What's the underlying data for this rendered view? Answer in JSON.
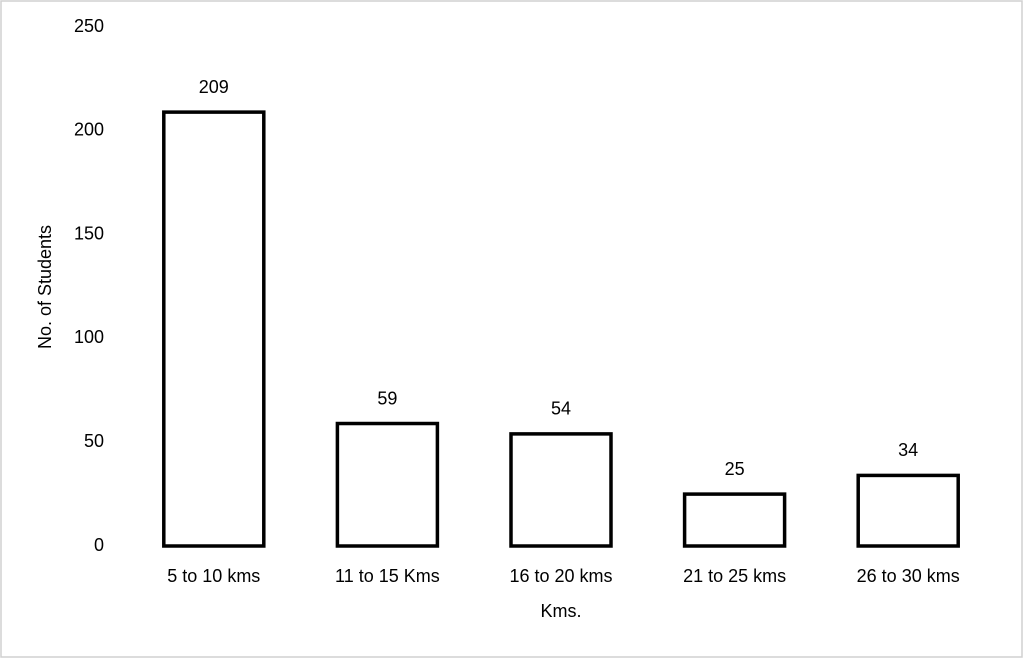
{
  "chart_data": {
    "type": "bar",
    "categories": [
      "5 to 10 kms",
      "11 to 15 Kms",
      "16 to 20 kms",
      "21 to 25 kms",
      "26 to 30 kms"
    ],
    "values": [
      209,
      59,
      54,
      25,
      34
    ],
    "color": "#ffffff",
    "edge_color": "#000000",
    "xlabel": "Kms.",
    "ylabel": "No. of Students",
    "ylim": [
      0,
      250
    ],
    "yticks": [
      0,
      50,
      100,
      150,
      200,
      250
    ],
    "grid": false
  }
}
